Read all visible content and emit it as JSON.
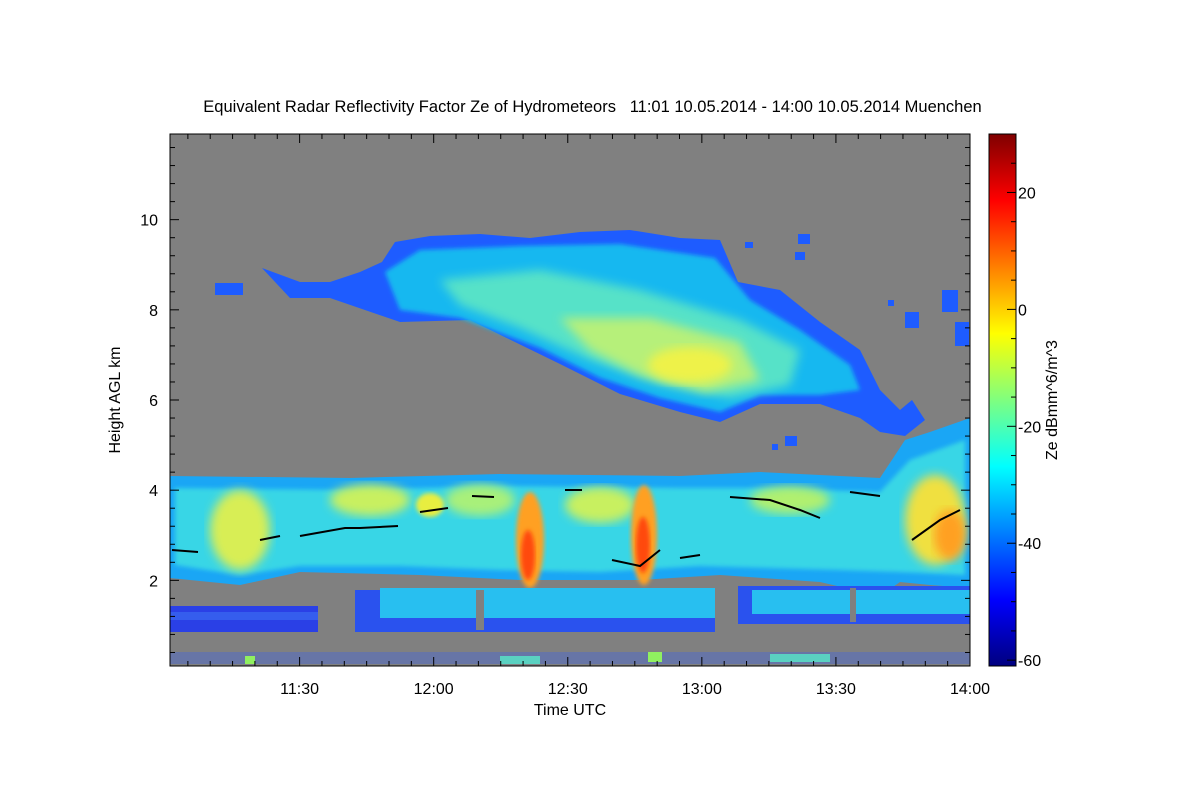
{
  "chart_data": {
    "type": "heatmap",
    "title": "Equivalent Radar Reflectivity Factor Ze of Hydrometeors   11:01 10.05.2014 - 14:00 10.05.2014 Muenchen",
    "xlabel": "Time UTC",
    "ylabel": "Height AGL km",
    "colorbar_label": "Ze dBmm^6/m^3",
    "x_range": [
      "11:01",
      "14:00"
    ],
    "x_ticks": [
      "11:30",
      "12:00",
      "12:30",
      "13:00",
      "13:30",
      "14:00"
    ],
    "ylim": [
      0.1,
      11.9
    ],
    "y_ticks": [
      2,
      4,
      6,
      8,
      10
    ],
    "colorbar_range": [
      -61,
      30
    ],
    "colorbar_ticks": [
      -60,
      -40,
      -20,
      0,
      20
    ],
    "background_color": "#808080",
    "colormap": [
      "#00007f",
      "#0000ff",
      "#007fff",
      "#00ffff",
      "#7fff7f",
      "#ffff00",
      "#ff7f00",
      "#ff0000",
      "#7f0000"
    ]
  }
}
